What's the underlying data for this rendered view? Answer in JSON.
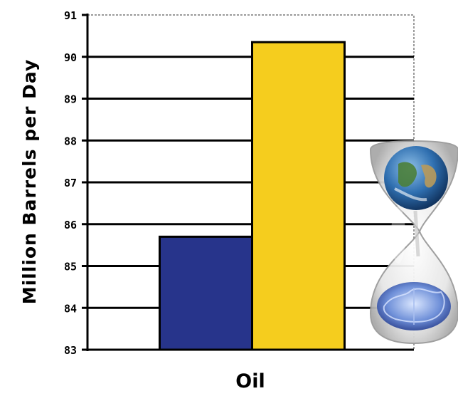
{
  "chart_data": {
    "type": "bar",
    "categories": [
      "Oil"
    ],
    "series": [
      {
        "values": [
          85.7
        ],
        "color": "#27348b"
      },
      {
        "values": [
          90.35
        ],
        "color": "#f5cd1e"
      }
    ],
    "xlabel": "Oil",
    "ylabel": "Million Barrels per Day",
    "ylim": [
      83,
      91
    ],
    "yticks": [
      83,
      84,
      85,
      86,
      87,
      88,
      89,
      90,
      91
    ],
    "grid": true,
    "legend": "none"
  },
  "illustration": {
    "name": "hourglass-earth-brain-icon"
  }
}
